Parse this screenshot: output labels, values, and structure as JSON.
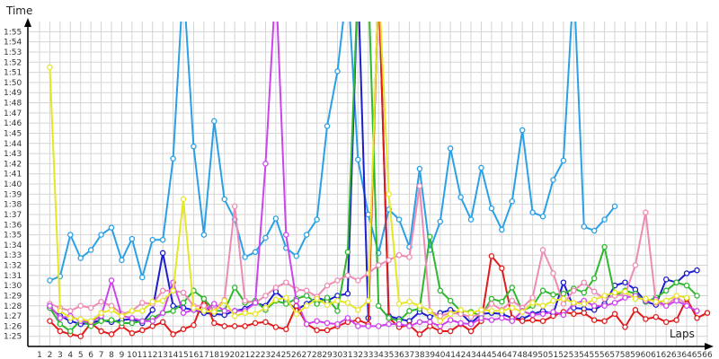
{
  "chart_data": {
    "type": "line",
    "ylabel": "Time",
    "xlabel": "Laps",
    "y_unit": "seconds",
    "ylim": [
      84,
      116
    ],
    "y_tick_labels": [
      "1:25",
      "1:26",
      "1:27",
      "1:28",
      "1:29",
      "1:30",
      "1:31",
      "1:32",
      "1:33",
      "1:34",
      "1:35",
      "1:36",
      "1:37",
      "1:38",
      "1:39",
      "1:40",
      "1:41",
      "1:42",
      "1:43",
      "1:44",
      "1:45",
      "1:46",
      "1:47",
      "1:48",
      "1:49",
      "1:50",
      "1:51",
      "1:52",
      "1:53",
      "1:54",
      "1:55"
    ],
    "y_tick_values": [
      85,
      86,
      87,
      88,
      89,
      90,
      91,
      92,
      93,
      94,
      95,
      96,
      97,
      98,
      99,
      100,
      101,
      102,
      103,
      104,
      105,
      106,
      107,
      108,
      109,
      110,
      111,
      112,
      113,
      114,
      115
    ],
    "x_tick_labels": [
      "1",
      "2",
      "3",
      "4",
      "5",
      "6",
      "7",
      "8",
      "9",
      "10",
      "11",
      "12",
      "13",
      "14",
      "15",
      "16",
      "17",
      "18",
      "19",
      "20",
      "21",
      "22",
      "23",
      "24",
      "25",
      "26",
      "27",
      "28",
      "29",
      "30",
      "31",
      "32",
      "33",
      "34",
      "35",
      "36",
      "37",
      "38",
      "39",
      "40",
      "41",
      "42",
      "43",
      "44",
      "45",
      "46",
      "47",
      "48",
      "49",
      "50",
      "51",
      "52",
      "53",
      "54",
      "55",
      "56",
      "57",
      "58",
      "59",
      "60",
      "61",
      "62",
      "63",
      "64",
      "65",
      "66"
    ],
    "xlim": [
      1,
      66
    ],
    "grid": true,
    "series": [
      {
        "color": "#2aa0e6",
        "x": [
          2,
          3,
          4,
          5,
          6,
          7,
          8,
          9,
          10,
          11,
          12,
          13,
          14,
          15,
          16,
          17,
          18,
          19,
          20,
          21,
          22,
          23,
          24,
          25,
          26,
          27,
          28,
          29,
          30,
          31,
          32,
          33,
          34,
          35,
          36,
          37,
          38,
          39,
          40,
          41,
          42,
          43,
          44,
          45,
          46,
          47,
          48,
          49,
          50,
          51,
          52,
          53,
          54,
          55,
          56,
          57
        ],
        "y": [
          90.5,
          90.9,
          95,
          92.7,
          93.5,
          95,
          95.7,
          92.5,
          94.6,
          90.8,
          94.5,
          94.5,
          102.5,
          120,
          103.7,
          95,
          106.2,
          98.5,
          96.5,
          92.8,
          93.3,
          94.7,
          96.6,
          93.7,
          92.9,
          95,
          96.5,
          105.7,
          111.1,
          120,
          102.4,
          97,
          93.2,
          97.5,
          96.5,
          93.8,
          101.5,
          93.5,
          96.3,
          103.5,
          98.7,
          96.5,
          101.6,
          97.6,
          95.5,
          98.3,
          105.3,
          97.2,
          96.8,
          100.4,
          102.3,
          120,
          95.8,
          95.4,
          96.5,
          97.8
        ]
      },
      {
        "color": "#1c1cd0",
        "x": [
          2,
          3,
          4,
          5,
          6,
          7,
          8,
          9,
          10,
          11,
          12,
          13,
          14,
          15,
          16,
          17,
          18,
          19,
          20,
          21,
          22,
          23,
          24,
          25,
          26,
          27,
          28,
          29,
          30,
          31,
          32,
          33,
          34,
          35,
          36,
          37,
          38,
          39,
          40,
          41,
          42,
          43,
          44,
          45,
          46,
          47,
          48,
          49,
          50,
          51,
          52,
          53,
          54,
          55,
          56,
          57,
          58,
          59,
          60,
          61,
          62,
          63,
          64,
          65
        ],
        "y": [
          87.8,
          87,
          86.5,
          86.2,
          86.3,
          86.6,
          86.4,
          86.6,
          86.7,
          86.3,
          87.6,
          93.2,
          88,
          87.8,
          87.6,
          87.3,
          87.2,
          87.1,
          87.5,
          87.7,
          88.3,
          88,
          89.4,
          88.5,
          87.6,
          88.2,
          88.8,
          88.5,
          89,
          89.2,
          120,
          86.8,
          120,
          87,
          86.7,
          86.5,
          87.4,
          86.9,
          87.3,
          87.6,
          87.3,
          86.3,
          87.2,
          87.3,
          87.2,
          86.8,
          86.7,
          87.2,
          87.5,
          87.2,
          90.3,
          87.8,
          87.7,
          87.6,
          88.2,
          90,
          90.3,
          89.6,
          88.4,
          88.1,
          90.6,
          90.3,
          91.2,
          91.5
        ]
      },
      {
        "color": "#e11b1b",
        "x": [
          2,
          3,
          4,
          5,
          6,
          7,
          8,
          9,
          10,
          11,
          12,
          13,
          14,
          15,
          16,
          17,
          18,
          19,
          20,
          21,
          22,
          23,
          24,
          25,
          26,
          27,
          28,
          29,
          30,
          31,
          32,
          33,
          34,
          35,
          36,
          37,
          38,
          39,
          40,
          41,
          42,
          43,
          44,
          45,
          46,
          47,
          48,
          49,
          50,
          51,
          52,
          53,
          54,
          55,
          56,
          57,
          58,
          59,
          60,
          61,
          62,
          63,
          64,
          65,
          66
        ],
        "y": [
          86.5,
          85.5,
          85.2,
          85,
          86.3,
          85.5,
          85.2,
          86,
          85.3,
          85.6,
          86,
          86.4,
          85.2,
          85.7,
          86.1,
          88.7,
          86.3,
          86,
          86,
          86,
          86.3,
          86.4,
          85.9,
          85.7,
          88,
          86.2,
          85.6,
          85.6,
          86,
          86.4,
          86.6,
          86.2,
          120,
          86.8,
          85.9,
          86.1,
          85.2,
          86,
          85.5,
          85.5,
          86.2,
          85.5,
          86.5,
          92.9,
          91.7,
          86.8,
          86.5,
          86.6,
          86.5,
          87,
          87.4,
          87.2,
          87.3,
          86.6,
          86.5,
          87.2,
          85.9,
          87.6,
          86.7,
          86.9,
          86.4,
          86.6,
          88.7,
          86.8,
          87.3
        ]
      },
      {
        "color": "#2eb82e",
        "x": [
          2,
          3,
          4,
          5,
          6,
          7,
          8,
          9,
          10,
          11,
          12,
          13,
          14,
          15,
          16,
          17,
          18,
          19,
          20,
          21,
          22,
          23,
          24,
          25,
          26,
          27,
          28,
          29,
          30,
          31,
          32,
          33,
          34,
          35,
          36,
          37,
          38,
          39,
          40,
          41,
          42,
          43,
          44,
          45,
          46,
          47,
          48,
          49,
          50,
          51,
          52,
          53,
          54,
          55,
          56,
          57,
          58,
          59,
          60,
          61,
          62,
          63,
          64,
          65
        ],
        "y": [
          87.8,
          86.2,
          85.5,
          86.6,
          86,
          86.5,
          86.6,
          86.3,
          86.3,
          86.5,
          86.8,
          87.3,
          87.5,
          88.3,
          89.5,
          88.7,
          87.5,
          87.5,
          89.8,
          88.3,
          88.5,
          87.6,
          88.5,
          88.2,
          88.7,
          89,
          88.2,
          88.8,
          87.5,
          93.3,
          120,
          120,
          88,
          86.8,
          86.5,
          87.5,
          87.7,
          94.8,
          89.5,
          88.5,
          87.5,
          87.4,
          87,
          88.7,
          88.4,
          89.8,
          87.5,
          88,
          89.5,
          89.1,
          89.2,
          89.7,
          89.3,
          90.7,
          93.8,
          89,
          89.5,
          89.2,
          88.4,
          88.8,
          89.5,
          90.3,
          90,
          89
        ]
      },
      {
        "color": "#ee8ab4",
        "x": [
          2,
          3,
          4,
          5,
          6,
          7,
          8,
          9,
          10,
          11,
          12,
          13,
          14,
          15,
          16,
          17,
          18,
          19,
          20,
          21,
          22,
          23,
          24,
          25,
          26,
          27,
          28,
          29,
          30,
          31,
          32,
          33,
          34,
          35,
          36,
          37,
          38,
          39,
          40,
          41,
          42,
          43,
          44,
          45,
          46,
          47,
          48,
          49,
          50,
          51,
          52,
          53,
          54,
          55,
          56,
          57,
          58,
          59,
          60,
          61,
          62,
          63,
          64
        ],
        "y": [
          88.2,
          87.8,
          87.5,
          88,
          87.8,
          88.4,
          88,
          87.2,
          87.5,
          88.3,
          88.2,
          89.5,
          89.5,
          89.3,
          88,
          88,
          87.6,
          88.6,
          97.8,
          88.5,
          88.3,
          89,
          89.8,
          90.3,
          89.6,
          89.5,
          88.9,
          90,
          90.5,
          91,
          90.5,
          91.2,
          92,
          92.5,
          93,
          92.8,
          99.8,
          87.5,
          87,
          87.3,
          87.2,
          86.9,
          87.2,
          88.2,
          87.6,
          88.5,
          87.8,
          88.8,
          93.5,
          91.2,
          88.2,
          89.5,
          90.3,
          89.4,
          88.7,
          89,
          89.1,
          92,
          97.2,
          88.3,
          88,
          88.9,
          88.1
        ]
      },
      {
        "color": "#cc44ee",
        "x": [
          2,
          3,
          4,
          5,
          6,
          7,
          8,
          9,
          10,
          11,
          12,
          13,
          14,
          15,
          16,
          17,
          18,
          19,
          20,
          21,
          22,
          23,
          24,
          25,
          26,
          27,
          28,
          29,
          30,
          31,
          32,
          33,
          34,
          35,
          36,
          37,
          38,
          39,
          40,
          41,
          42,
          43,
          44,
          45,
          46,
          47,
          48,
          49,
          50,
          51,
          52,
          53,
          54,
          55,
          56,
          57,
          58,
          59,
          60,
          61,
          62,
          63,
          64,
          65
        ],
        "y": [
          88,
          86.8,
          87,
          86.5,
          86.4,
          87,
          90.5,
          87,
          86.8,
          86.5,
          86.5,
          87.3,
          90.3,
          87.3,
          87.6,
          87.5,
          88.2,
          87.5,
          87.5,
          87.5,
          88.3,
          102,
          120,
          95,
          88.5,
          86.2,
          86.5,
          86.3,
          86.2,
          86.8,
          86,
          86,
          86,
          86.2,
          86.2,
          86,
          86.4,
          86.4,
          86,
          86.6,
          86.3,
          86.2,
          86.8,
          86.6,
          86.8,
          86.5,
          87.5,
          87.1,
          87.2,
          87.4,
          87.1,
          88.2,
          88.5,
          88,
          88,
          88.3,
          88.8,
          89,
          88.5,
          88.6,
          88,
          88.5,
          88,
          87.5
        ]
      },
      {
        "color": "#e6e629",
        "x": [
          2,
          3,
          4,
          5,
          6,
          7,
          8,
          9,
          10,
          11,
          12,
          13,
          14,
          15,
          16,
          17,
          18,
          19,
          20,
          21,
          22,
          23,
          24,
          25,
          26,
          27,
          28,
          29,
          30,
          31,
          32,
          33,
          34,
          35,
          36,
          37,
          38,
          39,
          40,
          41,
          42,
          43,
          44,
          45,
          46,
          47,
          48,
          49,
          50,
          51,
          52,
          53,
          54,
          55,
          56,
          57,
          58,
          59,
          60,
          61,
          62,
          63,
          64
        ],
        "y": [
          111.5,
          87.5,
          86.8,
          86.7,
          86.5,
          87.3,
          87.6,
          87,
          87.5,
          87.5,
          88.4,
          88.5,
          89.5,
          98.5,
          87.8,
          87.5,
          87.4,
          88.5,
          87,
          87.3,
          87.2,
          87.8,
          88.6,
          88.8,
          87.2,
          88,
          88.7,
          88.1,
          88.5,
          88.3,
          87.6,
          88.5,
          120,
          99,
          88.2,
          88.4,
          88,
          87.5,
          86.5,
          87.2,
          87.6,
          87.3,
          87.6,
          87.5,
          87.5,
          87.8,
          87.4,
          88.3,
          88,
          88.5,
          88.7,
          88.3,
          88.2,
          88.6,
          89,
          89.3,
          89.4,
          88.7,
          88.7,
          88.4,
          88.5,
          89,
          88.8
        ]
      }
    ]
  }
}
